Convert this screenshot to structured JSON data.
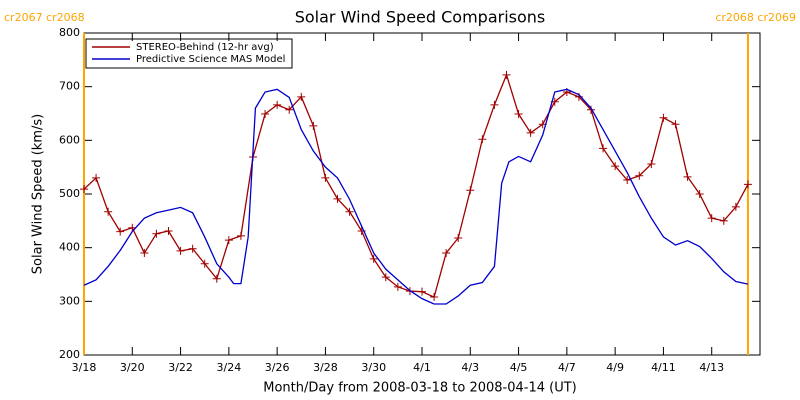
{
  "chart_data": {
    "type": "line",
    "title": "Solar Wind Speed Comparisons",
    "xlabel": "Month/Day from 2008-03-18 to 2008-04-14 (UT)",
    "ylabel": "Solar Wind Speed (km/s)",
    "xlim": [
      0,
      28
    ],
    "ylim": [
      200,
      800
    ],
    "xticks": [
      {
        "value": 0,
        "label": "3/18"
      },
      {
        "value": 2,
        "label": "3/20"
      },
      {
        "value": 4,
        "label": "3/22"
      },
      {
        "value": 6,
        "label": "3/24"
      },
      {
        "value": 8,
        "label": "3/26"
      },
      {
        "value": 10,
        "label": "3/28"
      },
      {
        "value": 12,
        "label": "3/30"
      },
      {
        "value": 14,
        "label": "4/1"
      },
      {
        "value": 16,
        "label": "4/3"
      },
      {
        "value": 18,
        "label": "4/5"
      },
      {
        "value": 20,
        "label": "4/7"
      },
      {
        "value": 22,
        "label": "4/9"
      },
      {
        "value": 24,
        "label": "4/11"
      },
      {
        "value": 26,
        "label": "4/13"
      }
    ],
    "yticks": [
      200,
      300,
      400,
      500,
      600,
      700,
      800
    ],
    "legend": "upper left",
    "markers": [
      {
        "x": 0,
        "label": "cr2067 cr2068",
        "color": "#ffa500"
      },
      {
        "x": 27.5,
        "label": "cr2068 cr2069",
        "color": "#ffa500"
      }
    ],
    "series": [
      {
        "name": "STEREO-Behind (12-hr avg)",
        "color": "#a00000",
        "marker": "+",
        "x": [
          0,
          0.5,
          1,
          1.5,
          2,
          2.5,
          3,
          3.5,
          4,
          4.5,
          5,
          5.5,
          6,
          6.5,
          7,
          7.5,
          8,
          8.5,
          9,
          9.5,
          10,
          10.5,
          11,
          11.5,
          12,
          12.5,
          13,
          13.5,
          14,
          14.5,
          15,
          15.5,
          16,
          16.5,
          17,
          17.5,
          18,
          18.5,
          19,
          19.5,
          20,
          20.5,
          21,
          21.5,
          22,
          22.5,
          23,
          23.5,
          24,
          24.5,
          25,
          25.5,
          26,
          26.5,
          27,
          27.5
        ],
        "values": [
          509,
          530,
          467,
          430,
          437,
          390,
          426,
          431,
          394,
          398,
          370,
          342,
          414,
          422,
          569,
          649,
          666,
          657,
          681,
          627,
          530,
          491,
          467,
          431,
          379,
          345,
          327,
          319,
          318,
          308,
          390,
          418,
          507,
          602,
          666,
          722,
          649,
          614,
          630,
          672,
          690,
          681,
          657,
          585,
          552,
          526,
          534,
          556,
          642,
          630,
          532,
          500,
          455,
          450,
          476,
          518
        ]
      },
      {
        "name": "Predictive Science MAS Model",
        "color": "#0000cc",
        "x": [
          0,
          0.5,
          1,
          1.5,
          2,
          2.5,
          3,
          3.5,
          4,
          4.5,
          5,
          5.5,
          6,
          6.2,
          6.5,
          6.8,
          7.1,
          7.5,
          8,
          8.5,
          9,
          9.5,
          10,
          10.5,
          11,
          11.5,
          12,
          12.5,
          13,
          13.5,
          14,
          14.5,
          15,
          15.5,
          16,
          16.5,
          17,
          17.3,
          17.6,
          18,
          18.5,
          19,
          19.5,
          20,
          20.5,
          21,
          21.5,
          22,
          22.5,
          23,
          23.5,
          24,
          24.5,
          25,
          25.5,
          26,
          26.5,
          27,
          27.5
        ],
        "values": [
          330,
          340,
          365,
          395,
          430,
          455,
          465,
          470,
          475,
          465,
          420,
          370,
          345,
          333,
          333,
          420,
          660,
          690,
          695,
          680,
          620,
          580,
          550,
          530,
          490,
          440,
          390,
          360,
          340,
          320,
          305,
          295,
          295,
          310,
          330,
          335,
          365,
          520,
          560,
          570,
          560,
          610,
          690,
          695,
          685,
          660,
          620,
          580,
          540,
          495,
          455,
          420,
          405,
          413,
          402,
          380,
          355,
          337,
          332
        ]
      }
    ]
  }
}
